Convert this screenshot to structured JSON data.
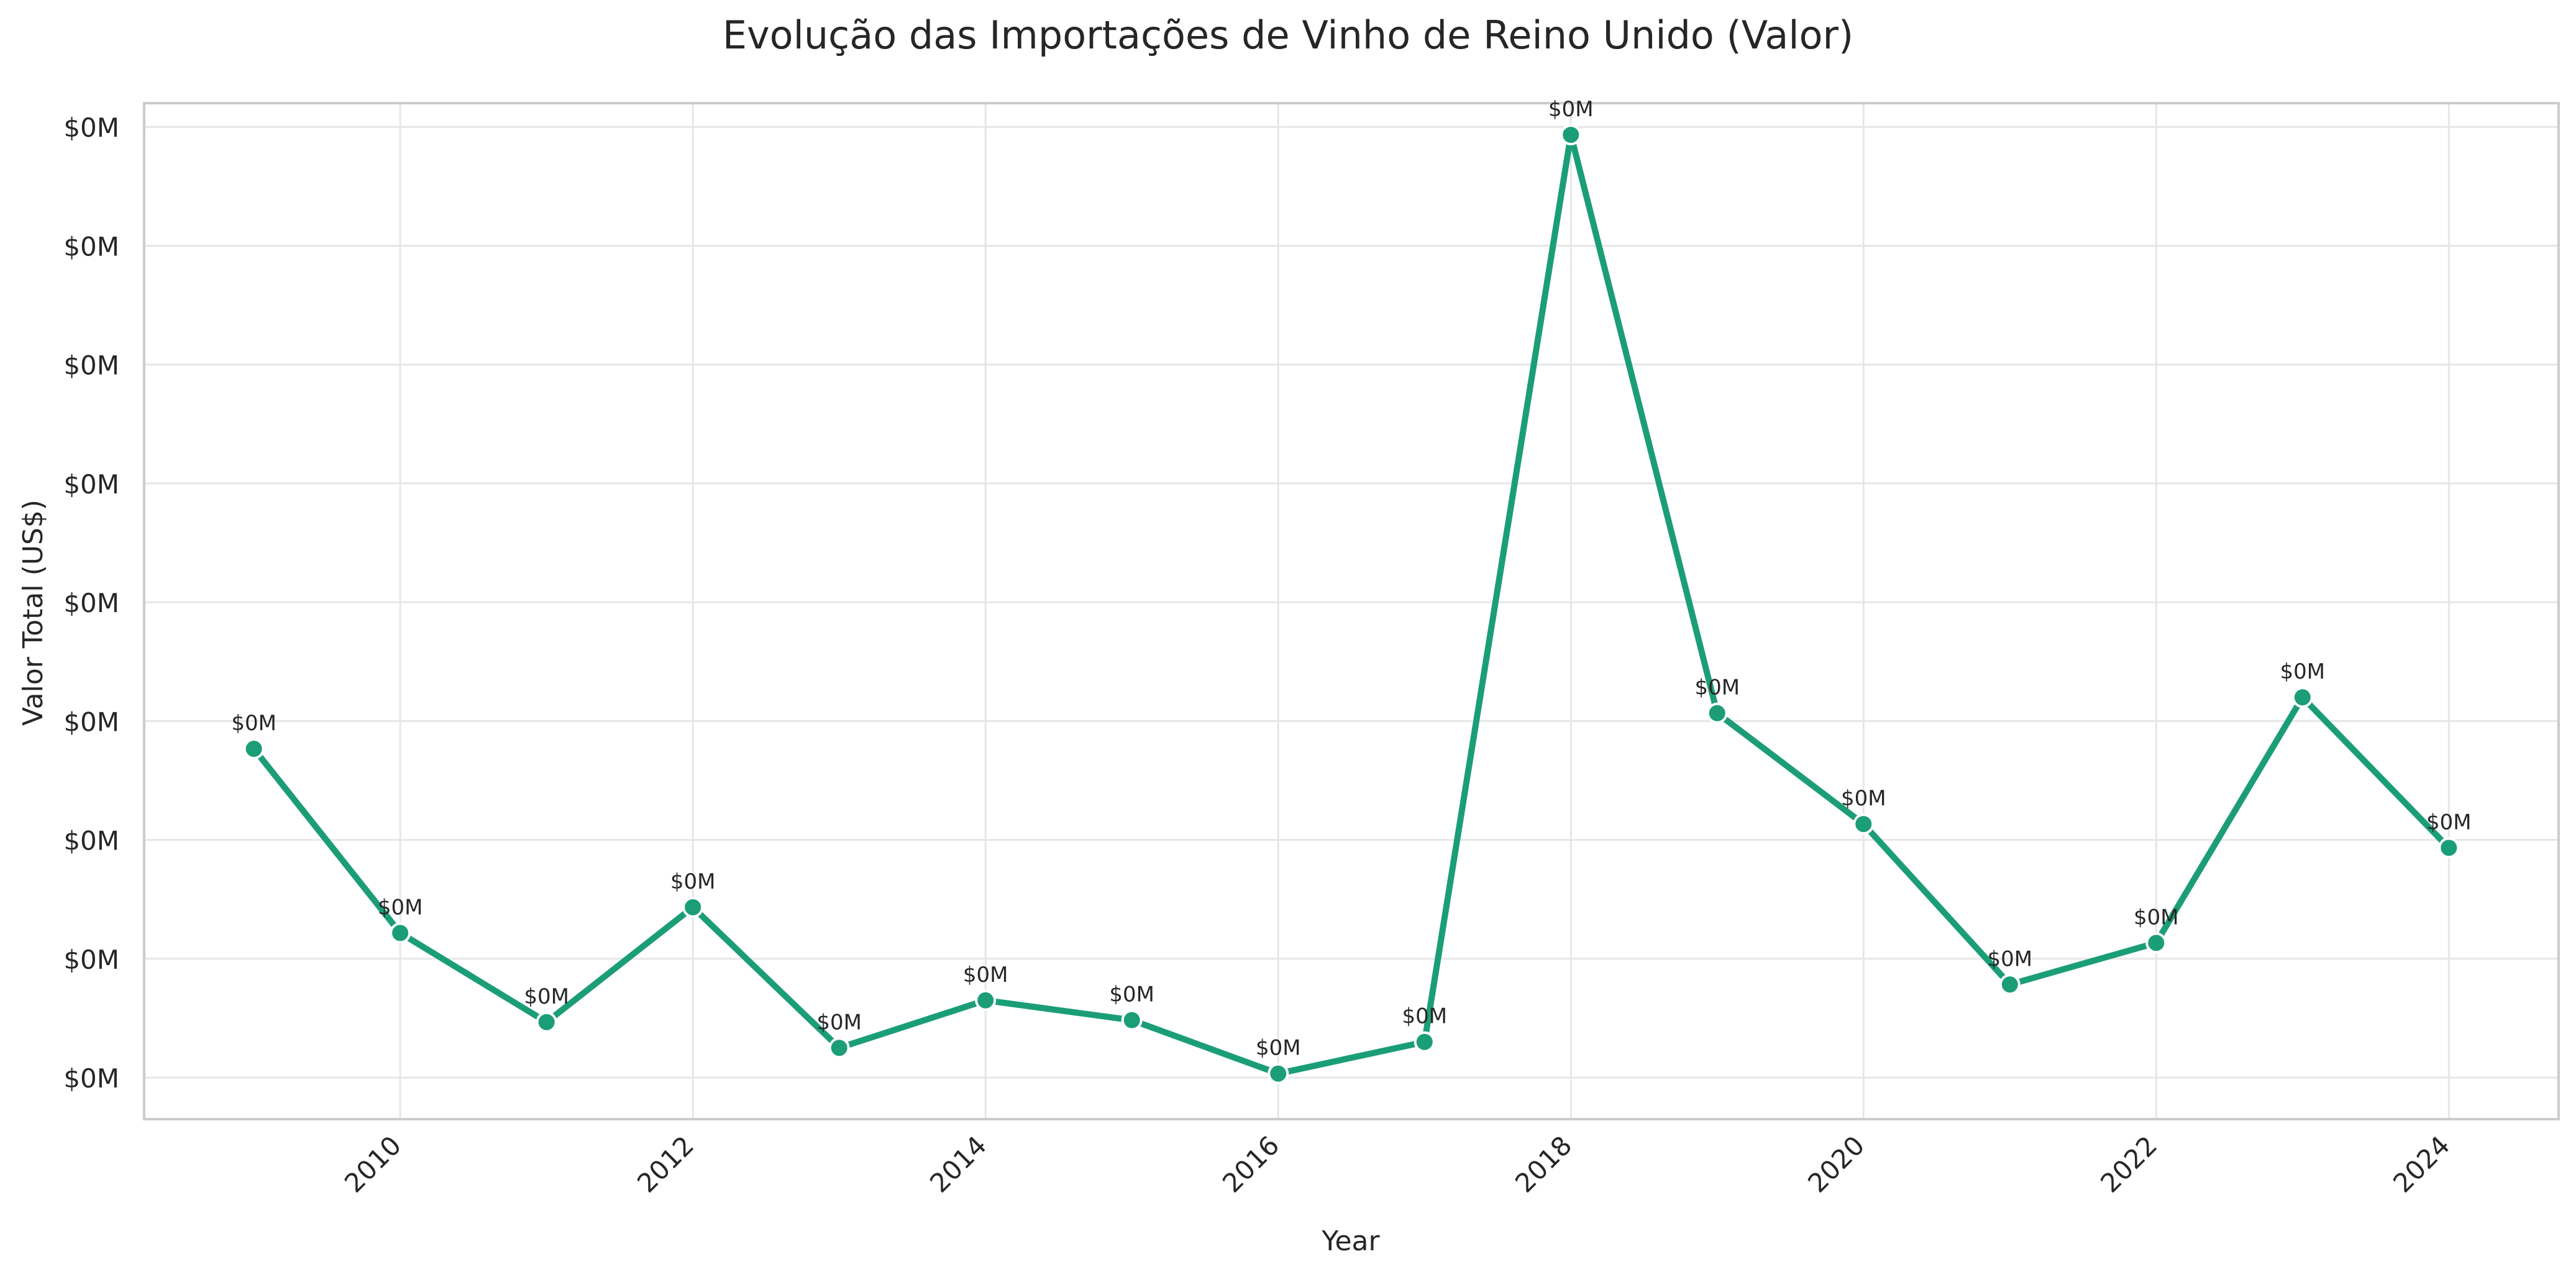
{
  "chart_data": {
    "type": "line",
    "title": "Evolução das Importações de Vinho de Reino Unido (Valor)",
    "xlabel": "Year",
    "ylabel": "Valor Total (US$)",
    "x": [
      2009,
      2010,
      2011,
      2012,
      2013,
      2014,
      2015,
      2016,
      2017,
      2018,
      2019,
      2020,
      2021,
      2022,
      2023,
      2024
    ],
    "series": [
      {
        "name": "",
        "values": [
          20600,
          11300,
          6800,
          12600,
          5500,
          7900,
          6900,
          4200,
          5800,
          51600,
          22400,
          16800,
          8700,
          10800,
          23200,
          15600
        ],
        "point_labels": [
          "$0M",
          "$0M",
          "$0M",
          "$0M",
          "$0M",
          "$0M",
          "$0M",
          "$0M",
          "$0M",
          "$0M",
          "$0M",
          "$0M",
          "$0M",
          "$0M",
          "$0M",
          "$0M"
        ]
      }
    ],
    "xticks": [
      2010,
      2012,
      2014,
      2016,
      2018,
      2020,
      2022,
      2024
    ],
    "xtick_labels": [
      "2010",
      "2012",
      "2014",
      "2016",
      "2018",
      "2020",
      "2022",
      "2024"
    ],
    "yticks": [
      4000,
      10000,
      16000,
      22000,
      28000,
      34000,
      40000,
      46000,
      52000
    ],
    "ytick_labels": [
      "$0M",
      "$0M",
      "$0M",
      "$0M",
      "$0M",
      "$0M",
      "$0M",
      "$0M",
      "$0M"
    ],
    "xlim": [
      2008.25,
      2024.75
    ],
    "ylim": [
      1900,
      53200
    ],
    "grid": true,
    "legend": "none",
    "colors": {
      "line": "#1b9e77",
      "grid": "#e6e6e6",
      "axis": "#cccccc",
      "text": "#262626"
    }
  }
}
